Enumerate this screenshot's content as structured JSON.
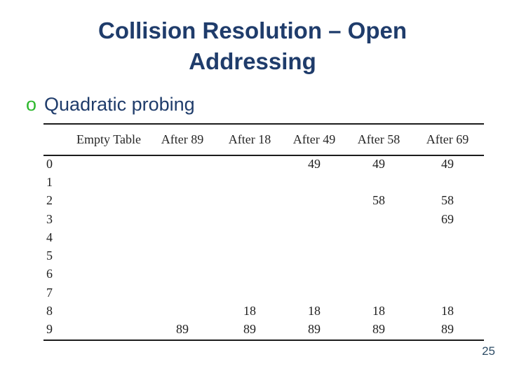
{
  "slide": {
    "title": "Collision Resolution – Open Addressing",
    "bullet": {
      "marker": "o",
      "text": "Quadratic probing"
    },
    "page_number": "25"
  },
  "table": {
    "columns": [
      "",
      "Empty Table",
      "After 89",
      "After 18",
      "After 49",
      "After 58",
      "After 69"
    ],
    "rows": [
      {
        "index": "0",
        "cells": [
          "",
          "",
          "",
          "49",
          "49",
          "49"
        ]
      },
      {
        "index": "1",
        "cells": [
          "",
          "",
          "",
          "",
          "",
          ""
        ]
      },
      {
        "index": "2",
        "cells": [
          "",
          "",
          "",
          "",
          "58",
          "58"
        ]
      },
      {
        "index": "3",
        "cells": [
          "",
          "",
          "",
          "",
          "",
          "69"
        ]
      },
      {
        "index": "4",
        "cells": [
          "",
          "",
          "",
          "",
          "",
          ""
        ]
      },
      {
        "index": "5",
        "cells": [
          "",
          "",
          "",
          "",
          "",
          ""
        ]
      },
      {
        "index": "6",
        "cells": [
          "",
          "",
          "",
          "",
          "",
          ""
        ]
      },
      {
        "index": "7",
        "cells": [
          "",
          "",
          "",
          "",
          "",
          ""
        ]
      },
      {
        "index": "8",
        "cells": [
          "",
          "",
          "18",
          "18",
          "18",
          "18"
        ]
      },
      {
        "index": "9",
        "cells": [
          "",
          "89",
          "89",
          "89",
          "89",
          "89"
        ]
      }
    ]
  },
  "colors": {
    "title_navy": "#1f3c6b",
    "bullet_green": "#2db82d",
    "table_ink": "#1f1f1f",
    "rule": "#1c1c1c",
    "page_number": "#2e4d66"
  }
}
